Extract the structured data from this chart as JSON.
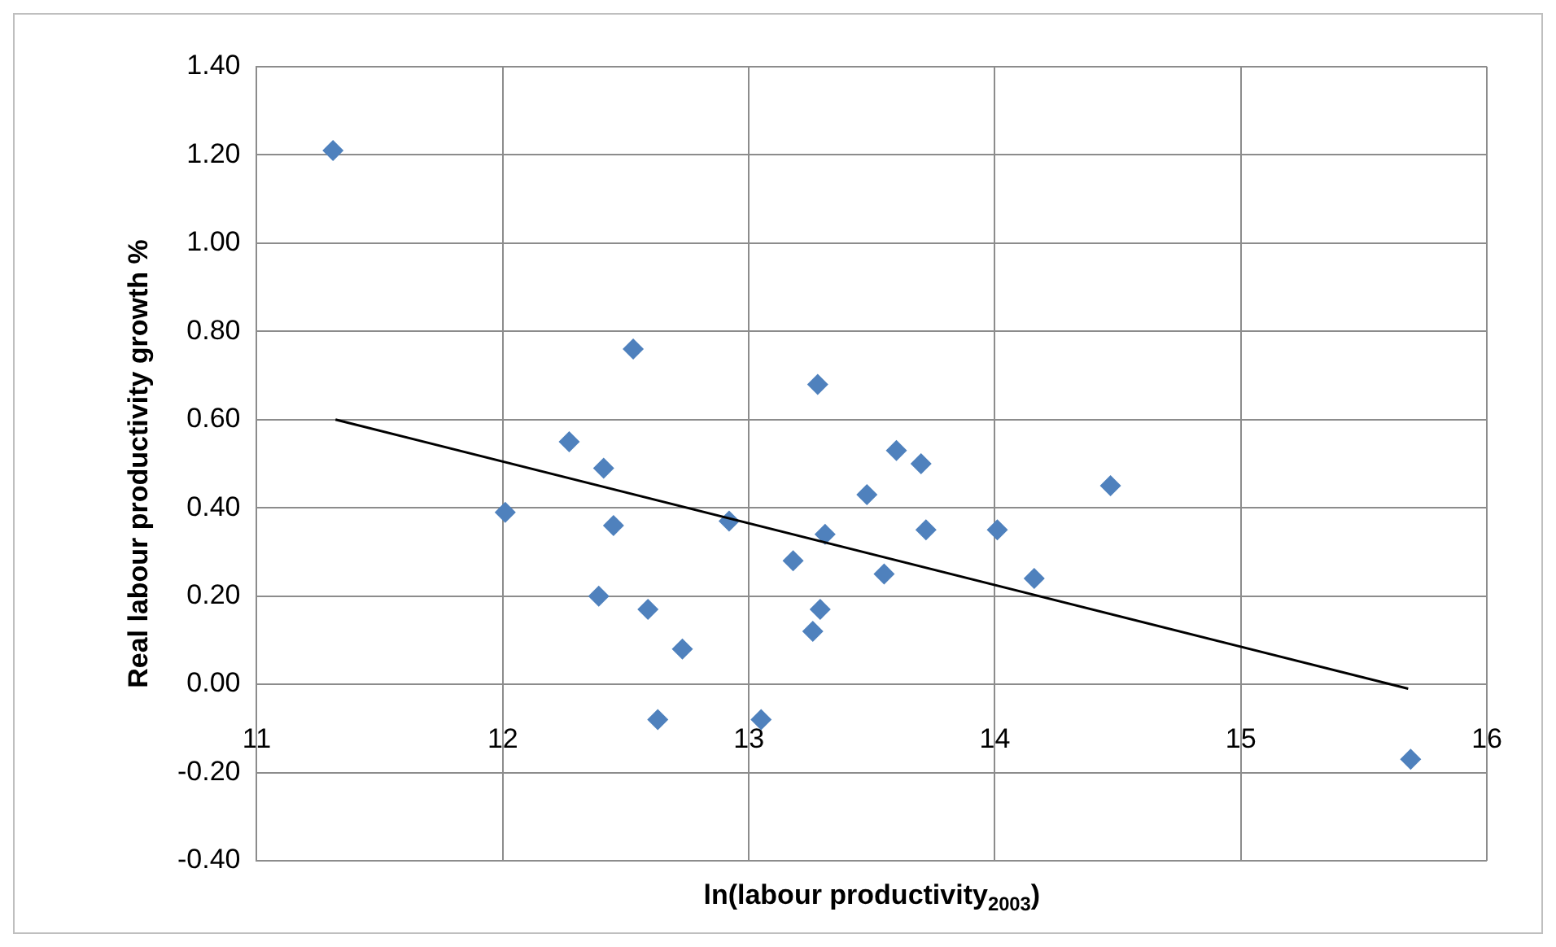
{
  "chart_data": {
    "type": "scatter",
    "xlabel": "ln(labour productivity$_{2003}$)",
    "ylabel": "Real labour productivity growth %",
    "xlim": [
      11,
      16
    ],
    "xticks": [
      11,
      12,
      13,
      14,
      15,
      16
    ],
    "ylim": [
      -0.4,
      1.4
    ],
    "yticks": [
      {
        "value": -0.4,
        "label": "-0.40"
      },
      {
        "value": -0.2,
        "label": "-0.20"
      },
      {
        "value": 0,
        "label": "0.00"
      },
      {
        "value": 0.2,
        "label": "0.20"
      },
      {
        "value": 0.4,
        "label": "0.40"
      },
      {
        "value": 0.6,
        "label": "0.60"
      },
      {
        "value": 0.8,
        "label": "0.80"
      },
      {
        "value": 1.0,
        "label": "1.00"
      },
      {
        "value": 1.2,
        "label": "1.20"
      },
      {
        "value": 1.4,
        "label": "1.40"
      }
    ],
    "grid": true,
    "legend": false,
    "marker": "diamond",
    "series": [
      {
        "color": "#4f81bd",
        "x": [
          11.31,
          12.01,
          12.27,
          12.41,
          12.45,
          12.39,
          12.53,
          12.59,
          12.63,
          12.73,
          12.92,
          13.05,
          13.18,
          13.28,
          13.26,
          13.29,
          13.31,
          13.48,
          13.55,
          13.6,
          13.7,
          13.72,
          14.01,
          14.16,
          14.47,
          15.69
        ],
        "values": [
          1.21,
          0.39,
          0.55,
          0.49,
          0.36,
          0.2,
          0.76,
          0.17,
          -0.08,
          0.08,
          0.37,
          -0.08,
          0.28,
          0.68,
          0.12,
          0.17,
          0.34,
          0.43,
          0.25,
          0.53,
          0.5,
          0.35,
          0.35,
          0.24,
          0.45,
          -0.17
        ]
      },
      {
        "type": "line",
        "marker": "none",
        "color": "#000000",
        "x": [
          11.32,
          15.68
        ],
        "values": [
          0.6,
          -0.01
        ]
      }
    ]
  }
}
